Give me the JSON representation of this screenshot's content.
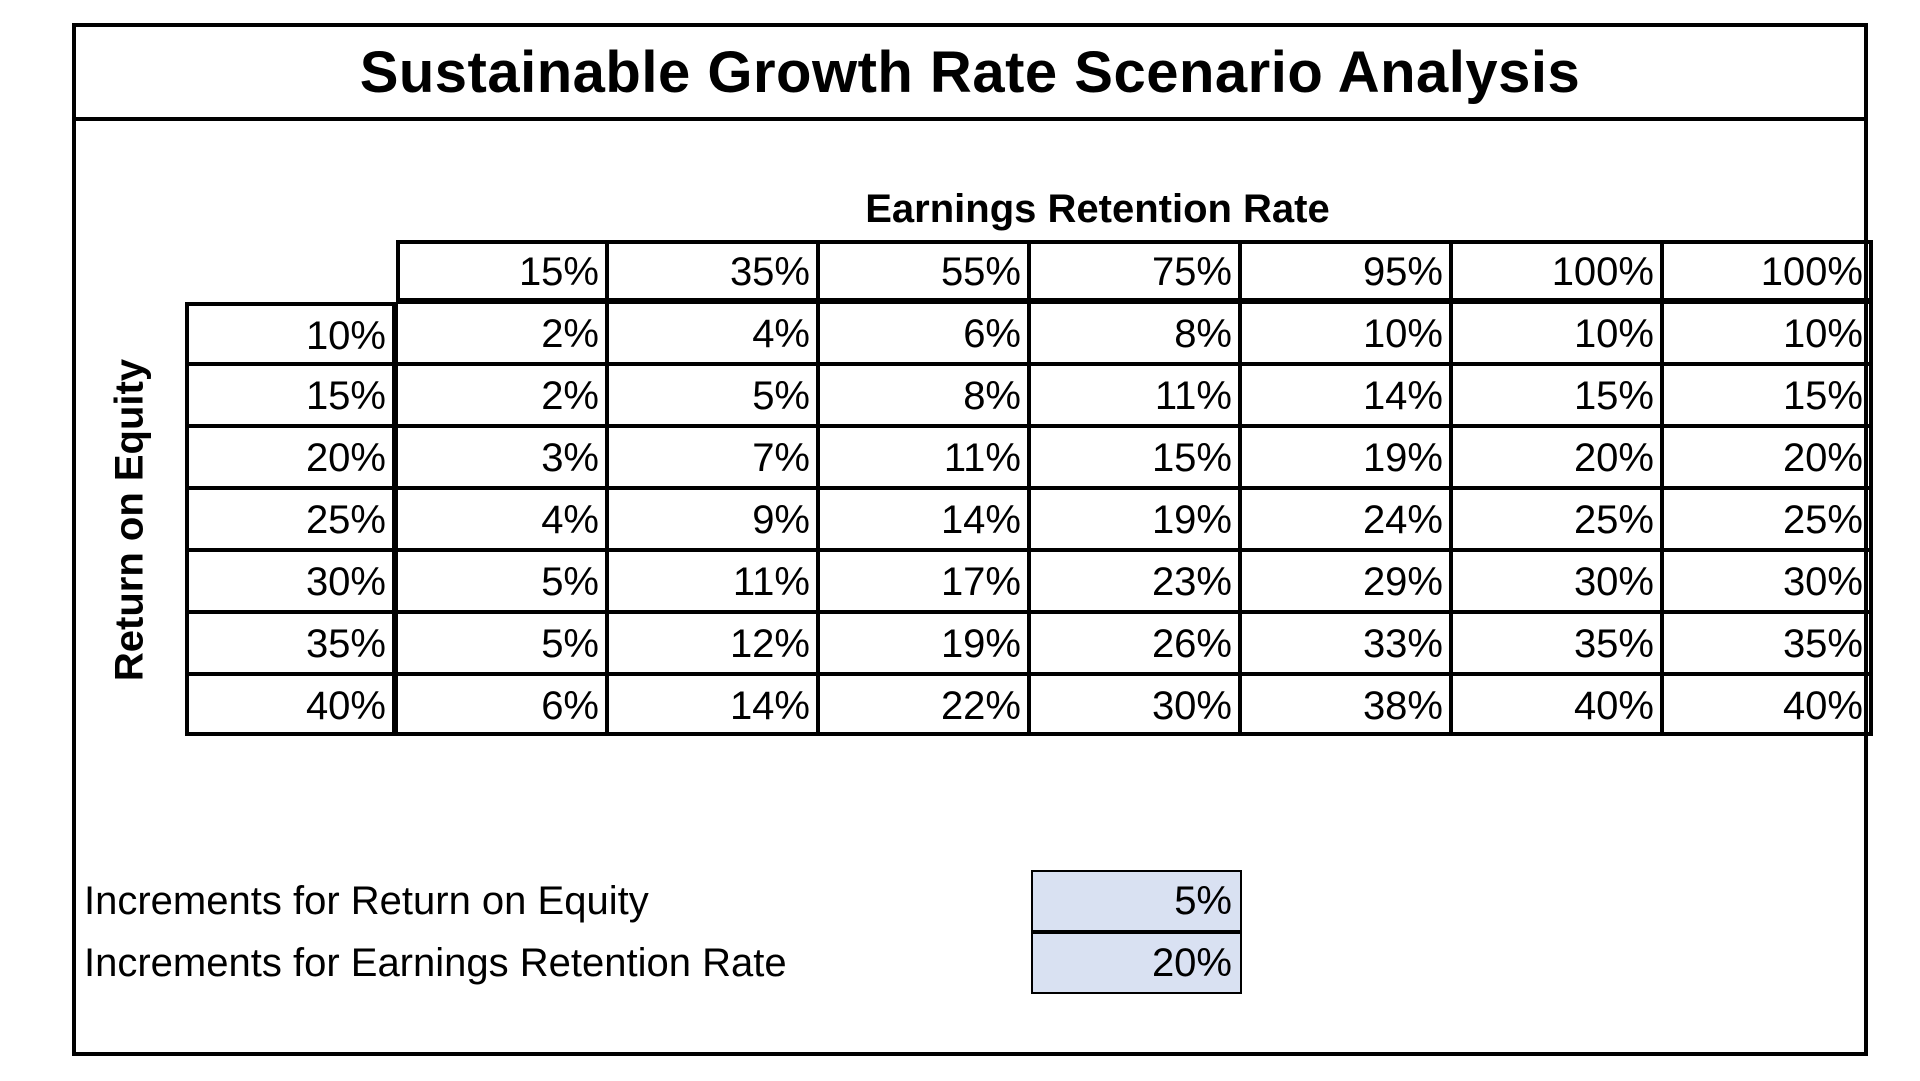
{
  "title": "Sustainable Growth Rate Scenario Analysis",
  "column_axis_label": "Earnings Retention Rate",
  "row_axis_label": "Return on Equity",
  "retention_rates": [
    "15%",
    "35%",
    "55%",
    "75%",
    "95%",
    "100%",
    "100%"
  ],
  "rows": [
    {
      "roe": "10%",
      "values": [
        "2%",
        "4%",
        "6%",
        "8%",
        "10%",
        "10%",
        "10%"
      ]
    },
    {
      "roe": "15%",
      "values": [
        "2%",
        "5%",
        "8%",
        "11%",
        "14%",
        "15%",
        "15%"
      ]
    },
    {
      "roe": "20%",
      "values": [
        "3%",
        "7%",
        "11%",
        "15%",
        "19%",
        "20%",
        "20%"
      ]
    },
    {
      "roe": "25%",
      "values": [
        "4%",
        "9%",
        "14%",
        "19%",
        "24%",
        "25%",
        "25%"
      ]
    },
    {
      "roe": "30%",
      "values": [
        "5%",
        "11%",
        "17%",
        "23%",
        "29%",
        "30%",
        "30%"
      ]
    },
    {
      "roe": "35%",
      "values": [
        "5%",
        "12%",
        "19%",
        "26%",
        "33%",
        "35%",
        "35%"
      ]
    },
    {
      "roe": "40%",
      "values": [
        "6%",
        "14%",
        "22%",
        "30%",
        "38%",
        "40%",
        "40%"
      ]
    }
  ],
  "increments": {
    "roe_label": "Increments for Return on Equity",
    "roe_value": "5%",
    "retention_label": "Increments for Earnings Retention Rate",
    "retention_value": "20%"
  },
  "colors": {
    "input_fill": "#d9e1f2",
    "border": "#000000"
  }
}
